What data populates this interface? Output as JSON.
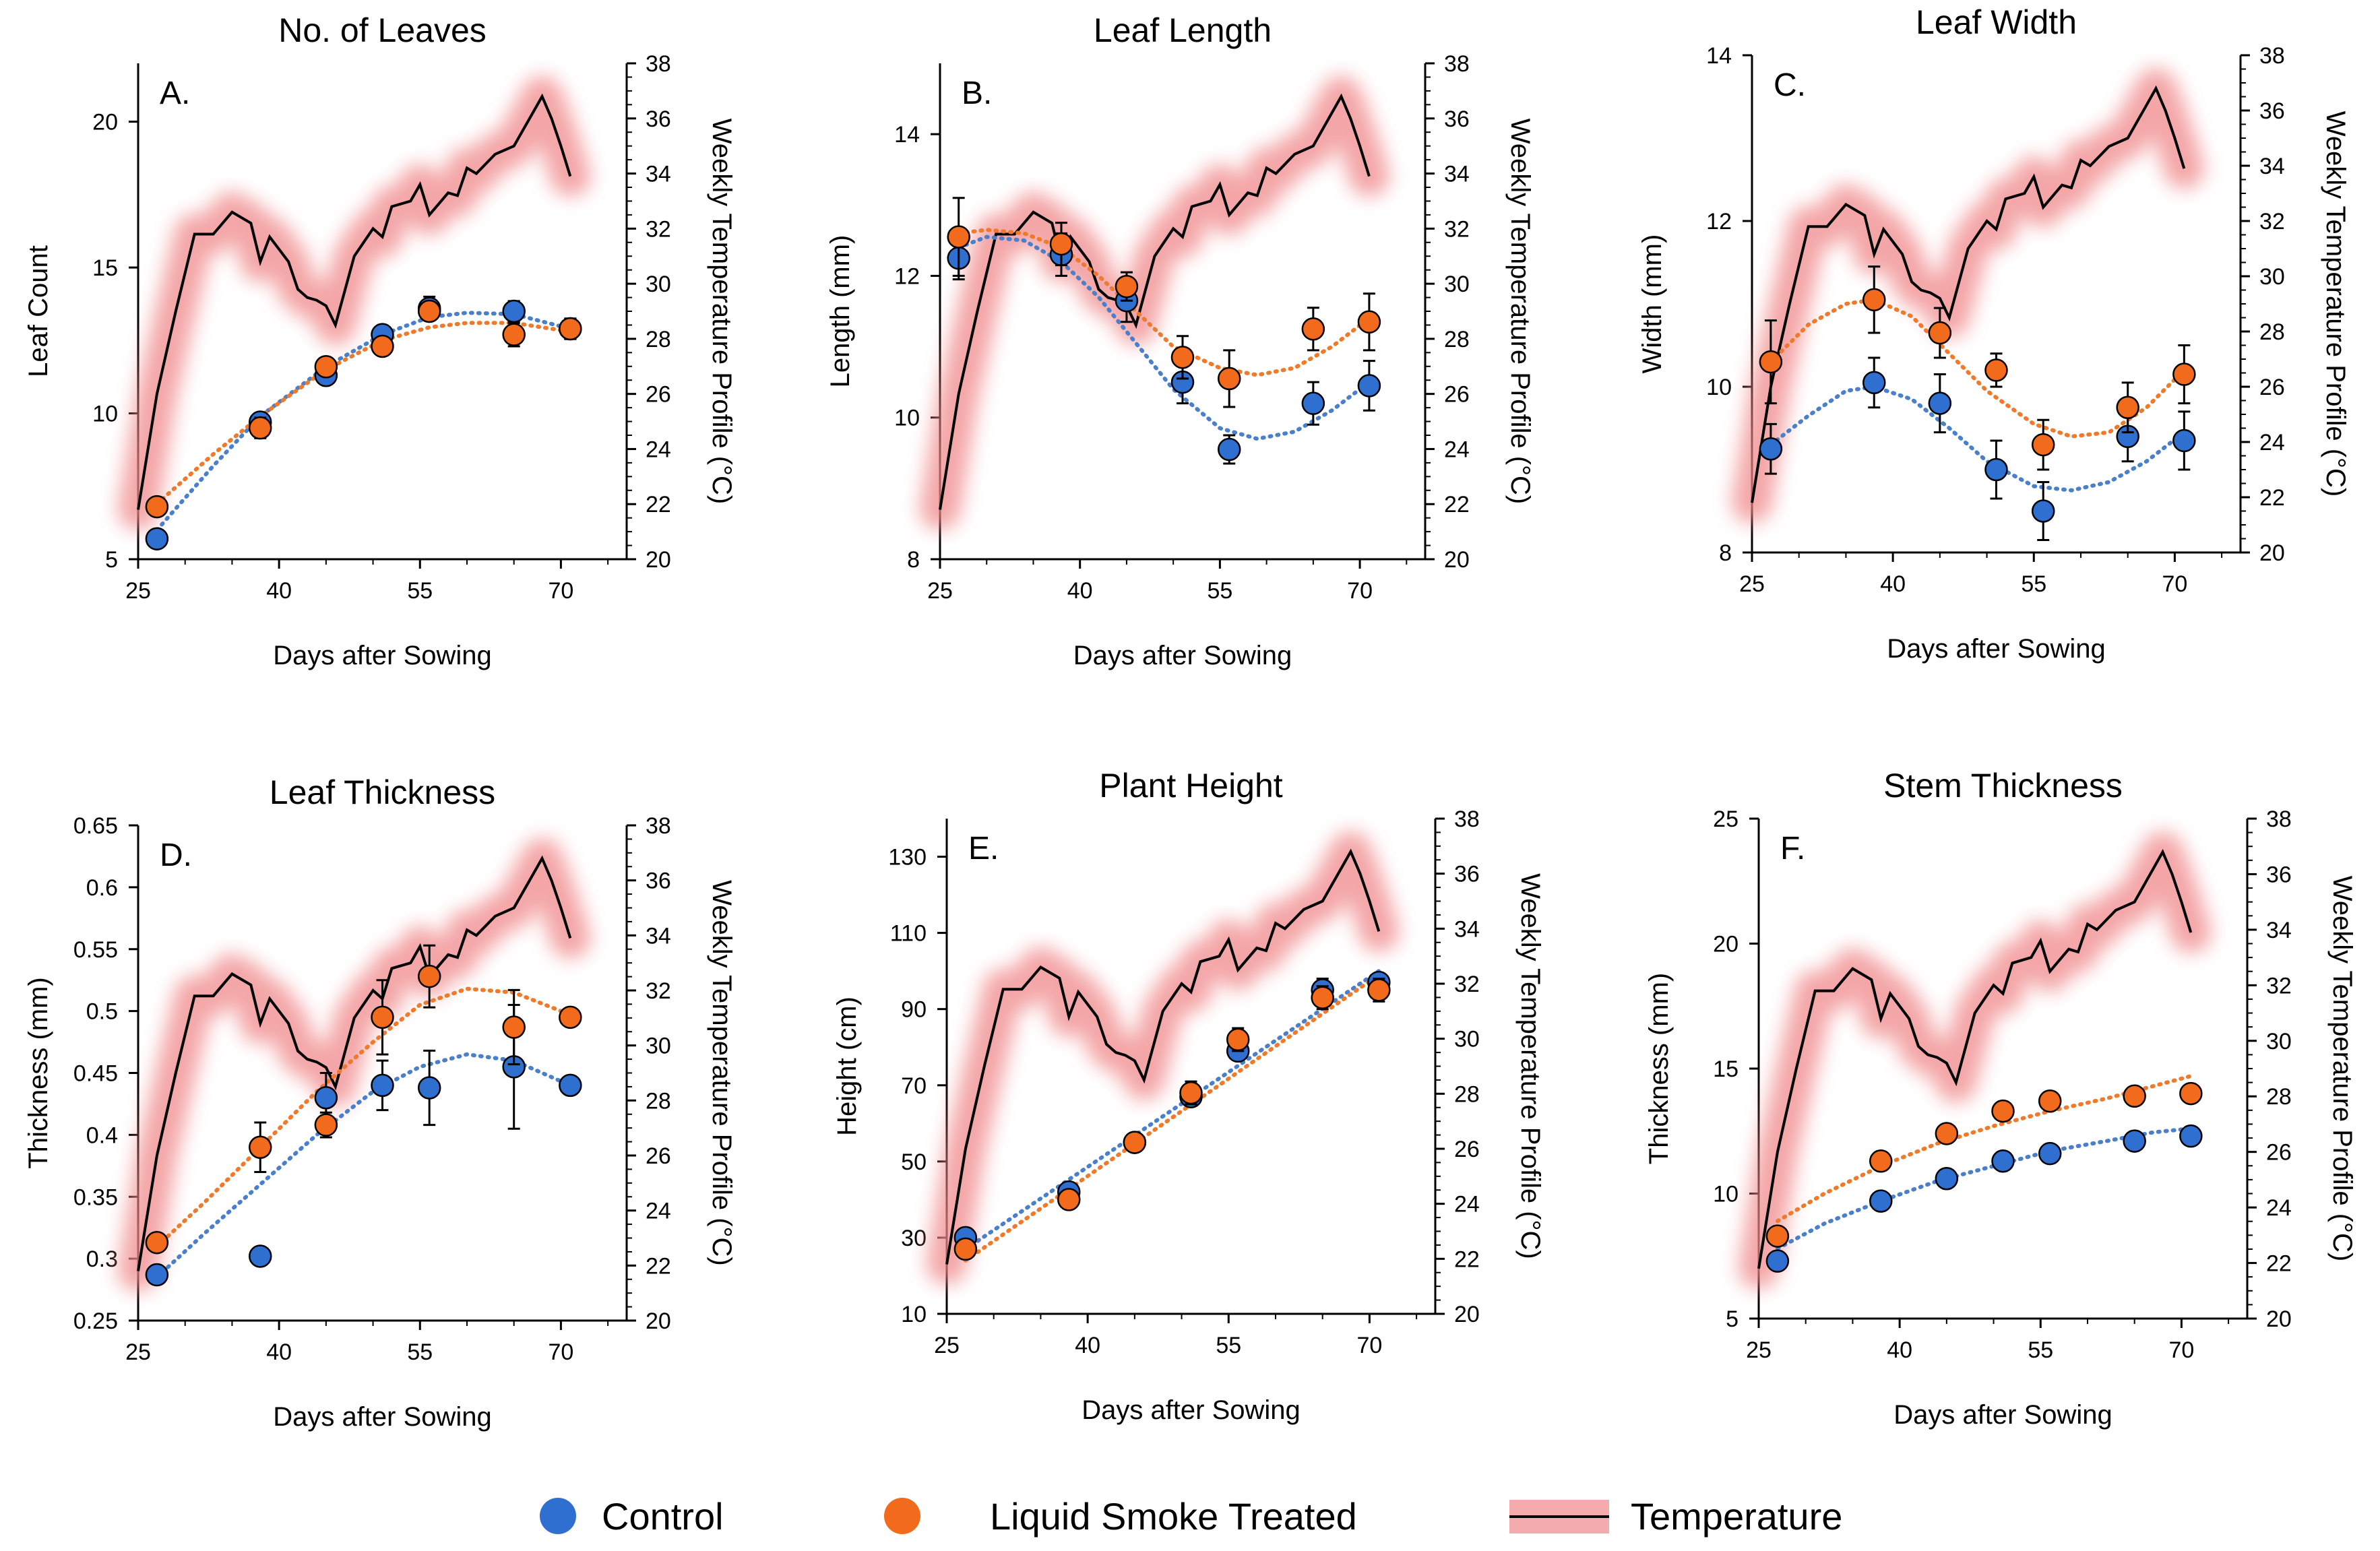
{
  "chart_data": [
    {
      "type": "scatter",
      "panel": "A.",
      "title": "No. of Leaves",
      "xlabel": "Days after Sowing",
      "ylabel": "Leaf Count",
      "y2label": "Weekly Temperature Profile (°C)",
      "xlim": [
        25,
        77
      ],
      "xticks": [
        25,
        40,
        55,
        70
      ],
      "ylim": [
        5,
        22
      ],
      "yticks": [
        5,
        10,
        15,
        20
      ],
      "y2lim": [
        20,
        38
      ],
      "y2ticks": [
        20,
        22,
        24,
        26,
        28,
        30,
        32,
        34,
        36,
        38
      ],
      "series": [
        {
          "name": "Control",
          "x": [
            27,
            38,
            45,
            51,
            56,
            65,
            71
          ],
          "y": [
            5.7,
            9.7,
            11.3,
            12.7,
            13.6,
            13.5,
            12.9
          ],
          "err": [
            0.15,
            0.25,
            0.2,
            0.3,
            0.4,
            0.35,
            0.35
          ]
        },
        {
          "name": "Liquid Smoke Treated",
          "x": [
            27,
            38,
            45,
            51,
            56,
            65,
            71
          ],
          "y": [
            6.8,
            9.5,
            11.6,
            12.3,
            13.5,
            12.7,
            12.9
          ],
          "err": [
            0.15,
            0.35,
            0.2,
            0.2,
            0.2,
            0.4,
            0.35
          ]
        }
      ],
      "trend": [
        {
          "name": "Control",
          "x": [
            27,
            33,
            38,
            45,
            51,
            56,
            60,
            65,
            71
          ],
          "y": [
            6.0,
            8.2,
            9.9,
            11.6,
            12.7,
            13.3,
            13.45,
            13.4,
            12.9
          ]
        },
        {
          "name": "Liquid Smoke Treated",
          "x": [
            27,
            33,
            38,
            45,
            51,
            56,
            60,
            65,
            71
          ],
          "y": [
            6.9,
            8.6,
            9.9,
            11.5,
            12.5,
            12.95,
            13.1,
            13.1,
            12.8
          ]
        }
      ]
    },
    {
      "type": "scatter",
      "panel": "B.",
      "title": "Leaf Length",
      "xlabel": "Days after Sowing",
      "ylabel": "Length (mm)",
      "y2label": "Weekly Temperature Profile (°C)",
      "xlim": [
        25,
        77
      ],
      "xticks": [
        25,
        40,
        55,
        70
      ],
      "ylim": [
        8,
        15
      ],
      "yticks": [
        8,
        10,
        12,
        14
      ],
      "y2lim": [
        20,
        38
      ],
      "y2ticks": [
        20,
        22,
        24,
        26,
        28,
        30,
        32,
        34,
        36,
        38
      ],
      "series": [
        {
          "name": "Control",
          "x": [
            27,
            38,
            45,
            51,
            56,
            65,
            71
          ],
          "y": [
            12.25,
            12.3,
            11.65,
            10.5,
            9.55,
            10.2,
            10.45
          ],
          "err": [
            0.3,
            0.3,
            0.3,
            0.3,
            0.2,
            0.3,
            0.35
          ]
        },
        {
          "name": "Liquid Smoke Treated",
          "x": [
            27,
            38,
            45,
            51,
            56,
            65,
            71
          ],
          "y": [
            12.55,
            12.45,
            11.85,
            10.85,
            10.55,
            11.25,
            11.35
          ],
          "err": [
            0.55,
            0.3,
            0.2,
            0.3,
            0.4,
            0.3,
            0.4
          ]
        }
      ],
      "trend": [
        {
          "name": "Control",
          "x": [
            27,
            30,
            34,
            38,
            42,
            46,
            50,
            55,
            59,
            63,
            67,
            71
          ],
          "y": [
            12.4,
            12.55,
            12.5,
            12.2,
            11.7,
            11.05,
            10.4,
            9.85,
            9.7,
            9.8,
            10.1,
            10.5
          ]
        },
        {
          "name": "Liquid Smoke Treated",
          "x": [
            27,
            30,
            34,
            38,
            42,
            46,
            50,
            55,
            59,
            63,
            67,
            71
          ],
          "y": [
            12.6,
            12.65,
            12.6,
            12.4,
            12.0,
            11.5,
            11.0,
            10.7,
            10.6,
            10.7,
            11.0,
            11.4
          ]
        }
      ]
    },
    {
      "type": "scatter",
      "panel": "C.",
      "title": "Leaf Width",
      "xlabel": "Days after Sowing",
      "ylabel": "Width (mm)",
      "y2label": "Weekly Temperature Profile (°C)",
      "xlim": [
        25,
        77
      ],
      "xticks": [
        25,
        40,
        55,
        70
      ],
      "ylim": [
        8,
        14
      ],
      "yticks": [
        8,
        10,
        12,
        14
      ],
      "y2lim": [
        20,
        38
      ],
      "y2ticks": [
        20,
        22,
        24,
        26,
        28,
        30,
        32,
        34,
        36,
        38
      ],
      "series": [
        {
          "name": "Control",
          "x": [
            27,
            38,
            45,
            51,
            56,
            65,
            71
          ],
          "y": [
            9.25,
            10.05,
            9.8,
            9.0,
            8.5,
            9.4,
            9.35
          ],
          "err": [
            0.3,
            0.3,
            0.35,
            0.35,
            0.35,
            0.3,
            0.35
          ]
        },
        {
          "name": "Liquid Smoke Treated",
          "x": [
            27,
            38,
            45,
            51,
            56,
            65,
            71
          ],
          "y": [
            10.3,
            11.05,
            10.65,
            10.2,
            9.3,
            9.75,
            10.15
          ],
          "err": [
            0.5,
            0.4,
            0.3,
            0.2,
            0.3,
            0.3,
            0.35
          ]
        }
      ],
      "trend": [
        {
          "name": "Control",
          "x": [
            27,
            31,
            35,
            38,
            42,
            46,
            50,
            55,
            59,
            63,
            67,
            71
          ],
          "y": [
            9.3,
            9.65,
            9.95,
            10.0,
            9.85,
            9.5,
            9.1,
            8.8,
            8.75,
            8.85,
            9.1,
            9.45
          ]
        },
        {
          "name": "Liquid Smoke Treated",
          "x": [
            27,
            31,
            35,
            38,
            42,
            46,
            50,
            55,
            59,
            63,
            67,
            71
          ],
          "y": [
            10.3,
            10.75,
            11.0,
            11.05,
            10.85,
            10.4,
            9.95,
            9.55,
            9.4,
            9.45,
            9.75,
            10.2
          ]
        }
      ]
    },
    {
      "type": "scatter",
      "panel": "D.",
      "title": "Leaf Thickness",
      "xlabel": "Days after Sowing",
      "ylabel": "Thickness (mm)",
      "y2label": "Weekly Temperature Profile (°C)",
      "xlim": [
        25,
        77
      ],
      "xticks": [
        25,
        40,
        55,
        70
      ],
      "ylim": [
        0.25,
        0.65
      ],
      "yticks": [
        0.25,
        0.3,
        0.35,
        0.4,
        0.45,
        0.5,
        0.55,
        0.6,
        0.65
      ],
      "y2lim": [
        20,
        38
      ],
      "y2ticks": [
        20,
        22,
        24,
        26,
        28,
        30,
        32,
        34,
        36,
        38
      ],
      "series": [
        {
          "name": "Control",
          "x": [
            27,
            38,
            45,
            51,
            56,
            65,
            71
          ],
          "y": [
            0.287,
            0.302,
            0.43,
            0.44,
            0.438,
            0.455,
            0.44
          ],
          "err": [
            0.005,
            0.005,
            0.02,
            0.02,
            0.03,
            0.05,
            0.005
          ]
        },
        {
          "name": "Liquid Smoke Treated",
          "x": [
            27,
            38,
            45,
            51,
            56,
            65,
            71
          ],
          "y": [
            0.313,
            0.39,
            0.408,
            0.495,
            0.528,
            0.487,
            0.495
          ],
          "err": [
            0.005,
            0.02,
            0.01,
            0.03,
            0.025,
            0.03,
            0.005
          ]
        }
      ],
      "trend": [
        {
          "name": "Control",
          "x": [
            27,
            32,
            38,
            44,
            50,
            55,
            60,
            65,
            71
          ],
          "y": [
            0.285,
            0.32,
            0.36,
            0.4,
            0.435,
            0.455,
            0.465,
            0.46,
            0.44
          ]
        },
        {
          "name": "Liquid Smoke Treated",
          "x": [
            27,
            32,
            38,
            44,
            50,
            55,
            60,
            65,
            71
          ],
          "y": [
            0.31,
            0.345,
            0.39,
            0.435,
            0.475,
            0.505,
            0.518,
            0.515,
            0.497
          ]
        }
      ]
    },
    {
      "type": "scatter",
      "panel": "E.",
      "title": "Plant Height",
      "xlabel": "Days after Sowing",
      "ylabel": "Height (cm)",
      "y2label": "Weekly Temperature Profile (°C)",
      "xlim": [
        25,
        77
      ],
      "xticks": [
        25,
        40,
        55,
        70
      ],
      "ylim": [
        10,
        140
      ],
      "yticks": [
        10,
        30,
        50,
        70,
        90,
        110,
        130
      ],
      "y2lim": [
        20,
        38
      ],
      "y2ticks": [
        20,
        22,
        24,
        26,
        28,
        30,
        32,
        34,
        36,
        38
      ],
      "series": [
        {
          "name": "Control",
          "x": [
            27,
            38,
            45,
            51,
            56,
            65,
            71
          ],
          "y": [
            30,
            42,
            55,
            67,
            79,
            95,
            97
          ],
          "err": [
            1,
            1,
            1,
            2,
            2,
            3,
            2
          ]
        },
        {
          "name": "Liquid Smoke Treated",
          "x": [
            27,
            38,
            45,
            51,
            56,
            65,
            71
          ],
          "y": [
            27,
            40,
            55,
            68,
            82,
            93,
            95
          ],
          "err": [
            1,
            1,
            1,
            3,
            3,
            3,
            3
          ]
        }
      ],
      "trend": [
        {
          "name": "Control",
          "x": [
            27,
            71
          ],
          "y": [
            27,
            100
          ]
        },
        {
          "name": "Liquid Smoke Treated",
          "x": [
            27,
            71
          ],
          "y": [
            24,
            99
          ]
        }
      ]
    },
    {
      "type": "scatter",
      "panel": "F.",
      "title": "Stem Thickness",
      "xlabel": "Days after Sowing",
      "ylabel": "Thickness (mm)",
      "y2label": "Weekly Temperature Profile (°C)",
      "xlim": [
        25,
        77
      ],
      "xticks": [
        25,
        40,
        55,
        70
      ],
      "ylim": [
        5,
        25
      ],
      "yticks": [
        5,
        10,
        15,
        20,
        25
      ],
      "y2lim": [
        20,
        38
      ],
      "y2ticks": [
        20,
        22,
        24,
        26,
        28,
        30,
        32,
        34,
        36,
        38
      ],
      "series": [
        {
          "name": "Control",
          "x": [
            27,
            38,
            45,
            51,
            56,
            65,
            71
          ],
          "y": [
            7.3,
            9.7,
            10.6,
            11.3,
            11.6,
            12.1,
            12.3
          ],
          "err": [
            0.2,
            0.2,
            0.2,
            0.2,
            0.2,
            0.2,
            0.2
          ]
        },
        {
          "name": "Liquid Smoke Treated",
          "x": [
            27,
            38,
            45,
            51,
            56,
            65,
            71
          ],
          "y": [
            8.3,
            11.3,
            12.4,
            13.3,
            13.7,
            13.9,
            14.0
          ],
          "err": [
            0.2,
            0.2,
            0.2,
            0.2,
            0.2,
            0.3,
            0.3
          ]
        }
      ],
      "trend": [
        {
          "name": "Control",
          "x": [
            27,
            32,
            38,
            44,
            50,
            56,
            62,
            67,
            71
          ],
          "y": [
            7.8,
            8.8,
            9.7,
            10.5,
            11.1,
            11.7,
            12.1,
            12.45,
            12.6
          ]
        },
        {
          "name": "Liquid Smoke Treated",
          "x": [
            27,
            32,
            38,
            44,
            50,
            56,
            62,
            67,
            71
          ],
          "y": [
            8.9,
            10.0,
            11.1,
            12.0,
            12.7,
            13.3,
            13.8,
            14.3,
            14.7
          ]
        }
      ]
    }
  ],
  "temperature": {
    "x": [
      25,
      27,
      29,
      31,
      33,
      35,
      37,
      38,
      39,
      41,
      42,
      43,
      44,
      45,
      46,
      48,
      50,
      51,
      52,
      54,
      55,
      56,
      58,
      59,
      60,
      61,
      63,
      65,
      67,
      68,
      69,
      70,
      71
    ],
    "y": [
      21.8,
      26,
      29,
      31.8,
      31.8,
      32.6,
      32.2,
      30.8,
      31.7,
      30.8,
      29.8,
      29.5,
      29.4,
      29.2,
      28.5,
      31,
      32,
      31.7,
      32.8,
      33,
      33.6,
      32.5,
      33.3,
      33.2,
      34.2,
      34.0,
      34.7,
      35,
      36.2,
      36.8,
      36.0,
      35.0,
      33.9
    ]
  },
  "legend": {
    "control": "Control",
    "treated": "Liquid Smoke Treated",
    "temperature": "Temperature"
  },
  "colors": {
    "control": "#2f6fd0",
    "treated": "#f26a1b",
    "control_trend": "#4a7fcc",
    "treated_trend": "#f07a2a",
    "temperature_line": "#000000",
    "temperature_glow": "#f0888a"
  }
}
